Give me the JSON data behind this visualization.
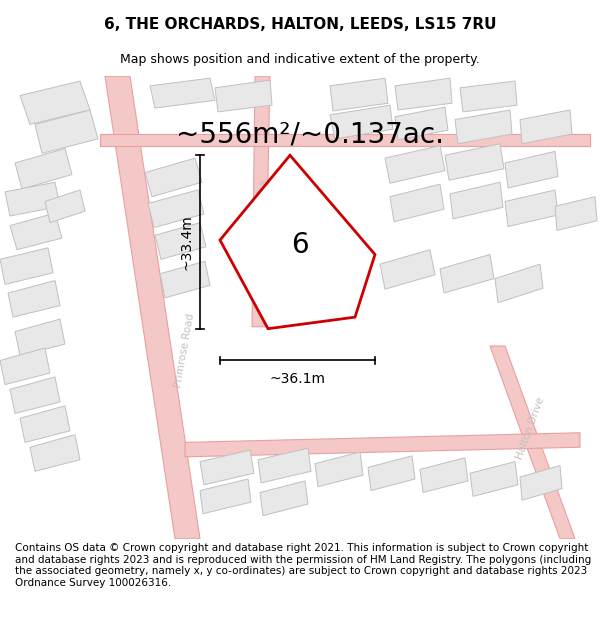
{
  "title": "6, THE ORCHARDS, HALTON, LEEDS, LS15 7RU",
  "subtitle": "Map shows position and indicative extent of the property.",
  "area_label": "~556m²/~0.137ac.",
  "plot_number": "6",
  "width_label": "~36.1m",
  "height_label": "~33.4m",
  "footer": "Contains OS data © Crown copyright and database right 2021. This information is subject to Crown copyright and database rights 2023 and is reproduced with the permission of HM Land Registry. The polygons (including the associated geometry, namely x, y co-ordinates) are subject to Crown copyright and database rights 2023 Ordnance Survey 100026316.",
  "bg_color": "#f7f7f7",
  "plot_fill": "#ffffff",
  "plot_edge": "#cc0000",
  "bldg_fill": "#e8e8e8",
  "bldg_edge": "#c0c0c0",
  "road_fill": "#f5c8c8",
  "road_edge": "#e8a0a0",
  "road_label_color": "#c0c0c0",
  "title_fontsize": 11,
  "subtitle_fontsize": 9,
  "footer_fontsize": 7.5,
  "area_fontsize": 20,
  "plot_num_fontsize": 20,
  "dim_fontsize": 10
}
